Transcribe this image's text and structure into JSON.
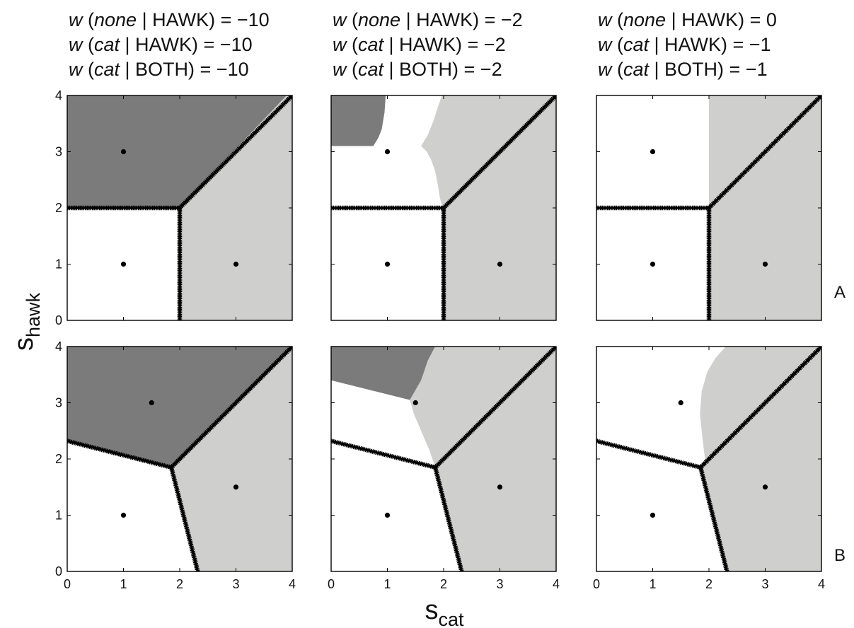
{
  "figure": {
    "xlabel": {
      "main": "s",
      "sub": "cat"
    },
    "ylabel": {
      "main": "s",
      "sub": "hawk"
    },
    "row_labels": [
      "A",
      "B"
    ],
    "columns": [
      {
        "title_lines": [
          {
            "w": "w",
            "open": " (",
            "var": "none",
            "rest": " | HAWK) = −10"
          },
          {
            "w": "w",
            "open": " (",
            "var": "cat",
            "rest": " | HAWK) = −10"
          },
          {
            "w": "w",
            "open": " (",
            "var": "cat",
            "rest": " | BOTH) = −10"
          }
        ]
      },
      {
        "title_lines": [
          {
            "w": "w",
            "open": " (",
            "var": "none",
            "rest": " | HAWK) = −2"
          },
          {
            "w": "w",
            "open": " (",
            "var": "cat",
            "rest": " | HAWK) = −2"
          },
          {
            "w": "w",
            "open": " (",
            "var": "cat",
            "rest": " | BOTH) = −2"
          }
        ]
      },
      {
        "title_lines": [
          {
            "w": "w",
            "open": " (",
            "var": "none",
            "rest": " | HAWK) = 0"
          },
          {
            "w": "w",
            "open": " (",
            "var": "cat",
            "rest": " | HAWK) = −1"
          },
          {
            "w": "w",
            "open": " (",
            "var": "cat",
            "rest": " | BOTH) = −1"
          }
        ]
      }
    ],
    "colors": {
      "dark_region": "#7b7b7b",
      "light_region": "#cfcfcd",
      "white_region": "#ffffff",
      "boundary": "#000000"
    }
  },
  "chart_data": [
    {
      "type": "heatmap",
      "row": "A",
      "col": 1,
      "xlim": [
        0,
        4
      ],
      "ylim": [
        0,
        4
      ],
      "xticks": [
        0,
        1,
        2,
        3,
        4
      ],
      "yticks": [
        0,
        1,
        2,
        3,
        4
      ],
      "regions": [
        {
          "fill": "dark",
          "points": [
            [
              0,
              4
            ],
            [
              3.9,
              4
            ],
            [
              2,
              2
            ],
            [
              0,
              2
            ]
          ]
        },
        {
          "fill": "light",
          "points": [
            [
              2,
              0
            ],
            [
              4,
              0
            ],
            [
              4,
              4
            ],
            [
              3.9,
              4
            ],
            [
              2,
              2
            ]
          ]
        }
      ],
      "boundaries": [
        [
          [
            0,
            2
          ],
          [
            2,
            2
          ]
        ],
        [
          [
            2,
            0
          ],
          [
            2,
            2
          ]
        ],
        [
          [
            2,
            2
          ],
          [
            4,
            4
          ]
        ]
      ],
      "points": [
        [
          1,
          3
        ],
        [
          1,
          1
        ],
        [
          3,
          1
        ]
      ]
    },
    {
      "type": "heatmap",
      "row": "A",
      "col": 2,
      "xlim": [
        0,
        4
      ],
      "ylim": [
        0,
        4
      ],
      "xticks": [
        0,
        1,
        2,
        3,
        4
      ],
      "yticks": [
        0,
        1,
        2,
        3,
        4
      ],
      "regions": [
        {
          "fill": "dark",
          "points": [
            [
              0,
              4
            ],
            [
              0.97,
              4
            ],
            [
              0.95,
              3.7
            ],
            [
              0.9,
              3.4
            ],
            [
              0.84,
              3.25
            ],
            [
              0.75,
              3.1
            ],
            [
              0,
              3.1
            ]
          ]
        },
        {
          "fill": "light",
          "points": [
            [
              0.97,
              4
            ],
            [
              4,
              4
            ],
            [
              4,
              0
            ],
            [
              2,
              0
            ],
            [
              2,
              2
            ],
            [
              1.96,
              2.08
            ],
            [
              1.93,
              2.2
            ],
            [
              1.9,
              2.4
            ],
            [
              1.85,
              2.65
            ],
            [
              1.78,
              2.85
            ],
            [
              1.7,
              3.0
            ],
            [
              1.6,
              3.1
            ],
            [
              1.72,
              3.3
            ],
            [
              1.82,
              3.55
            ],
            [
              1.9,
              3.8
            ],
            [
              1.97,
              4
            ]
          ]
        }
      ],
      "boundaries": [
        [
          [
            0,
            2
          ],
          [
            2,
            2
          ]
        ],
        [
          [
            2,
            0
          ],
          [
            2,
            2
          ]
        ],
        [
          [
            2,
            2
          ],
          [
            4,
            4
          ]
        ]
      ],
      "points": [
        [
          1,
          3
        ],
        [
          1,
          1
        ],
        [
          3,
          1
        ]
      ]
    },
    {
      "type": "heatmap",
      "row": "A",
      "col": 3,
      "xlim": [
        0,
        4
      ],
      "ylim": [
        0,
        4
      ],
      "xticks": [
        0,
        1,
        2,
        3,
        4
      ],
      "yticks": [
        0,
        1,
        2,
        3,
        4
      ],
      "regions": [
        {
          "fill": "light",
          "points": [
            [
              2,
              4
            ],
            [
              4,
              4
            ],
            [
              4,
              0
            ],
            [
              2,
              0
            ],
            [
              2,
              2
            ]
          ]
        }
      ],
      "boundaries": [
        [
          [
            0,
            2
          ],
          [
            2,
            2
          ]
        ],
        [
          [
            2,
            0
          ],
          [
            2,
            2
          ]
        ],
        [
          [
            2,
            2
          ],
          [
            4,
            4
          ]
        ]
      ],
      "points": [
        [
          1,
          3
        ],
        [
          1,
          1
        ],
        [
          3,
          1
        ]
      ]
    },
    {
      "type": "heatmap",
      "row": "B",
      "col": 1,
      "xlim": [
        0,
        4
      ],
      "ylim": [
        0,
        4
      ],
      "xticks": [
        0,
        1,
        2,
        3,
        4
      ],
      "yticks": [
        0,
        1,
        2,
        3,
        4
      ],
      "regions": [
        {
          "fill": "dark",
          "points": [
            [
              0,
              4
            ],
            [
              4,
              4
            ],
            [
              1.85,
              1.85
            ],
            [
              0,
              2.32
            ]
          ]
        },
        {
          "fill": "light",
          "points": [
            [
              4,
              4
            ],
            [
              4,
              0
            ],
            [
              2.32,
              0
            ],
            [
              1.85,
              1.85
            ]
          ]
        }
      ],
      "boundaries": [
        [
          [
            0,
            2.32
          ],
          [
            1.85,
            1.85
          ]
        ],
        [
          [
            1.85,
            1.85
          ],
          [
            2.32,
            0
          ]
        ],
        [
          [
            1.85,
            1.85
          ],
          [
            4,
            4
          ]
        ]
      ],
      "points": [
        [
          1.5,
          3
        ],
        [
          1,
          1
        ],
        [
          3,
          1.5
        ]
      ]
    },
    {
      "type": "heatmap",
      "row": "B",
      "col": 2,
      "xlim": [
        0,
        4
      ],
      "ylim": [
        0,
        4
      ],
      "xticks": [
        0,
        1,
        2,
        3,
        4
      ],
      "yticks": [
        0,
        1,
        2,
        3,
        4
      ],
      "regions": [
        {
          "fill": "dark",
          "points": [
            [
              0,
              4
            ],
            [
              1.85,
              4
            ],
            [
              1.72,
              3.75
            ],
            [
              1.6,
              3.4
            ],
            [
              1.4,
              3.05
            ],
            [
              0,
              3.4
            ]
          ]
        },
        {
          "fill": "light",
          "points": [
            [
              1.85,
              4
            ],
            [
              4,
              4
            ],
            [
              4,
              0
            ],
            [
              2.32,
              0
            ],
            [
              1.85,
              1.85
            ],
            [
              1.75,
              2.15
            ],
            [
              1.6,
              2.5
            ],
            [
              1.47,
              2.8
            ],
            [
              1.4,
              3.05
            ],
            [
              1.6,
              3.4
            ],
            [
              1.72,
              3.75
            ]
          ]
        }
      ],
      "boundaries": [
        [
          [
            0,
            2.32
          ],
          [
            1.85,
            1.85
          ]
        ],
        [
          [
            1.85,
            1.85
          ],
          [
            2.32,
            0
          ]
        ],
        [
          [
            1.85,
            1.85
          ],
          [
            4,
            4
          ]
        ]
      ],
      "points": [
        [
          1.5,
          3
        ],
        [
          1,
          1
        ],
        [
          3,
          1.5
        ]
      ]
    },
    {
      "type": "heatmap",
      "row": "B",
      "col": 3,
      "xlim": [
        0,
        4
      ],
      "ylim": [
        0,
        4
      ],
      "xticks": [
        0,
        1,
        2,
        3,
        4
      ],
      "yticks": [
        0,
        1,
        2,
        3,
        4
      ],
      "regions": [
        {
          "fill": "light",
          "points": [
            [
              2.3,
              4
            ],
            [
              4,
              4
            ],
            [
              4,
              0
            ],
            [
              2.32,
              0
            ],
            [
              1.85,
              1.85
            ],
            [
              1.93,
              2.0
            ],
            [
              1.88,
              2.4
            ],
            [
              1.84,
              2.8
            ],
            [
              1.87,
              3.2
            ],
            [
              1.97,
              3.55
            ],
            [
              2.12,
              3.8
            ]
          ]
        }
      ],
      "boundaries": [
        [
          [
            0,
            2.32
          ],
          [
            1.85,
            1.85
          ]
        ],
        [
          [
            1.85,
            1.85
          ],
          [
            2.32,
            0
          ]
        ],
        [
          [
            1.85,
            1.85
          ],
          [
            4,
            4
          ]
        ]
      ],
      "points": [
        [
          1.5,
          3
        ],
        [
          1,
          1
        ],
        [
          3,
          1.5
        ]
      ]
    }
  ]
}
